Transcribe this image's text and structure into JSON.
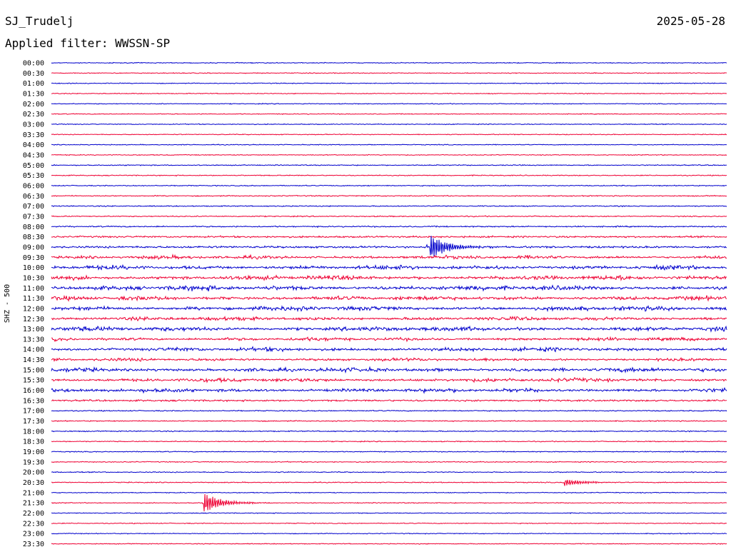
{
  "header": {
    "station": "SJ_Trudelj",
    "date": "2025-05-28",
    "filter_label": "Applied filter: WWSSN-SP",
    "channel_label": "SHZ - 500"
  },
  "colors": {
    "odd": "#0000cc",
    "even": "#ee0033"
  },
  "chart_data": {
    "type": "line",
    "title": "",
    "ylabel": "SHZ - 500",
    "xlabel": "",
    "row_labels": [
      "00:00",
      "00:30",
      "01:00",
      "01:30",
      "02:00",
      "02:30",
      "03:00",
      "03:30",
      "04:00",
      "04:30",
      "05:00",
      "05:30",
      "06:00",
      "06:30",
      "07:00",
      "07:30",
      "08:00",
      "08:30",
      "09:00",
      "09:30",
      "10:00",
      "10:30",
      "11:00",
      "11:30",
      "12:00",
      "12:30",
      "13:00",
      "13:30",
      "14:00",
      "14:30",
      "15:00",
      "15:30",
      "16:00",
      "16:30",
      "17:00",
      "17:30",
      "18:00",
      "18:30",
      "19:00",
      "19:30",
      "20:00",
      "20:30",
      "21:00",
      "21:30",
      "22:00",
      "22:30",
      "23:00",
      "23:30"
    ],
    "row_noise": [
      0.8,
      0.8,
      0.8,
      0.8,
      0.8,
      0.8,
      0.8,
      0.8,
      0.8,
      0.8,
      0.9,
      0.9,
      0.9,
      1.0,
      1.0,
      1.0,
      1.2,
      1.6,
      1.8,
      2.5,
      3.0,
      3.2,
      3.5,
      3.0,
      3.3,
      2.8,
      3.3,
      2.5,
      2.8,
      2.2,
      3.0,
      2.8,
      2.8,
      1.6,
      1.0,
      1.0,
      1.0,
      0.9,
      0.9,
      0.9,
      0.9,
      0.9,
      0.8,
      0.8,
      0.8,
      0.8,
      0.8,
      0.8
    ],
    "events": [
      {
        "row": 18,
        "x": 0.56,
        "amp": 18,
        "label": "event"
      },
      {
        "row": 43,
        "x": 0.226,
        "amp": 14,
        "label": "event"
      },
      {
        "row": 41,
        "x": 0.76,
        "amp": 5,
        "label": "event"
      }
    ]
  }
}
